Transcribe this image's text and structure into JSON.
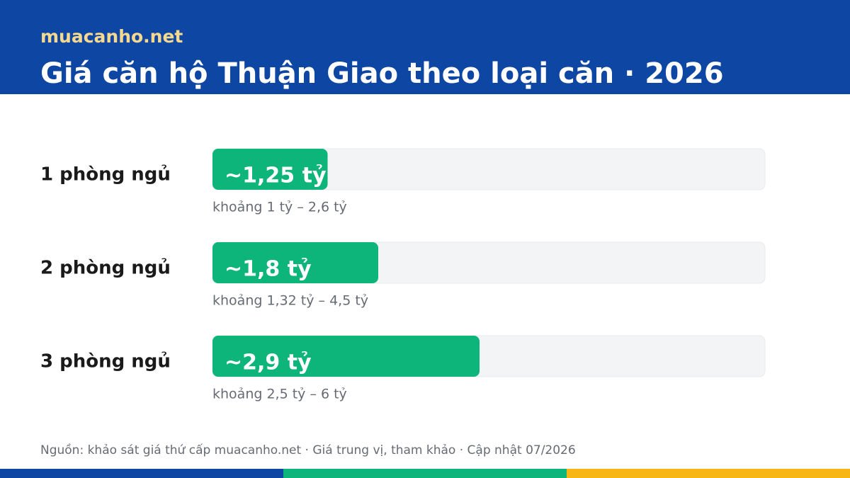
{
  "chart_data": {
    "type": "bar",
    "orientation": "horizontal",
    "brand": "muacanho.net",
    "title": "Giá căn hộ Thuận Giao theo loại căn · 2026",
    "categories": [
      "1 phòng ngủ",
      "2 phòng ngủ",
      "3 phòng ngủ"
    ],
    "values": [
      1.25,
      1.8,
      2.9
    ],
    "value_labels": [
      "~1,25 tỷ",
      "~1,8 tỷ",
      "~2,9 tỷ"
    ],
    "range_labels": [
      "khoảng 1 tỷ – 2,6 tỷ",
      "khoảng 1,32 tỷ – 4,5 tỷ",
      "khoảng 2,5 tỷ – 6 tỷ"
    ],
    "color": "#0db57a",
    "xlim": [
      0,
      6
    ],
    "source": "Nguồn: khảo sát giá thứ cấp muacanho.net · Giá trung vị, tham khảo · Cập nhật 07/2026"
  }
}
